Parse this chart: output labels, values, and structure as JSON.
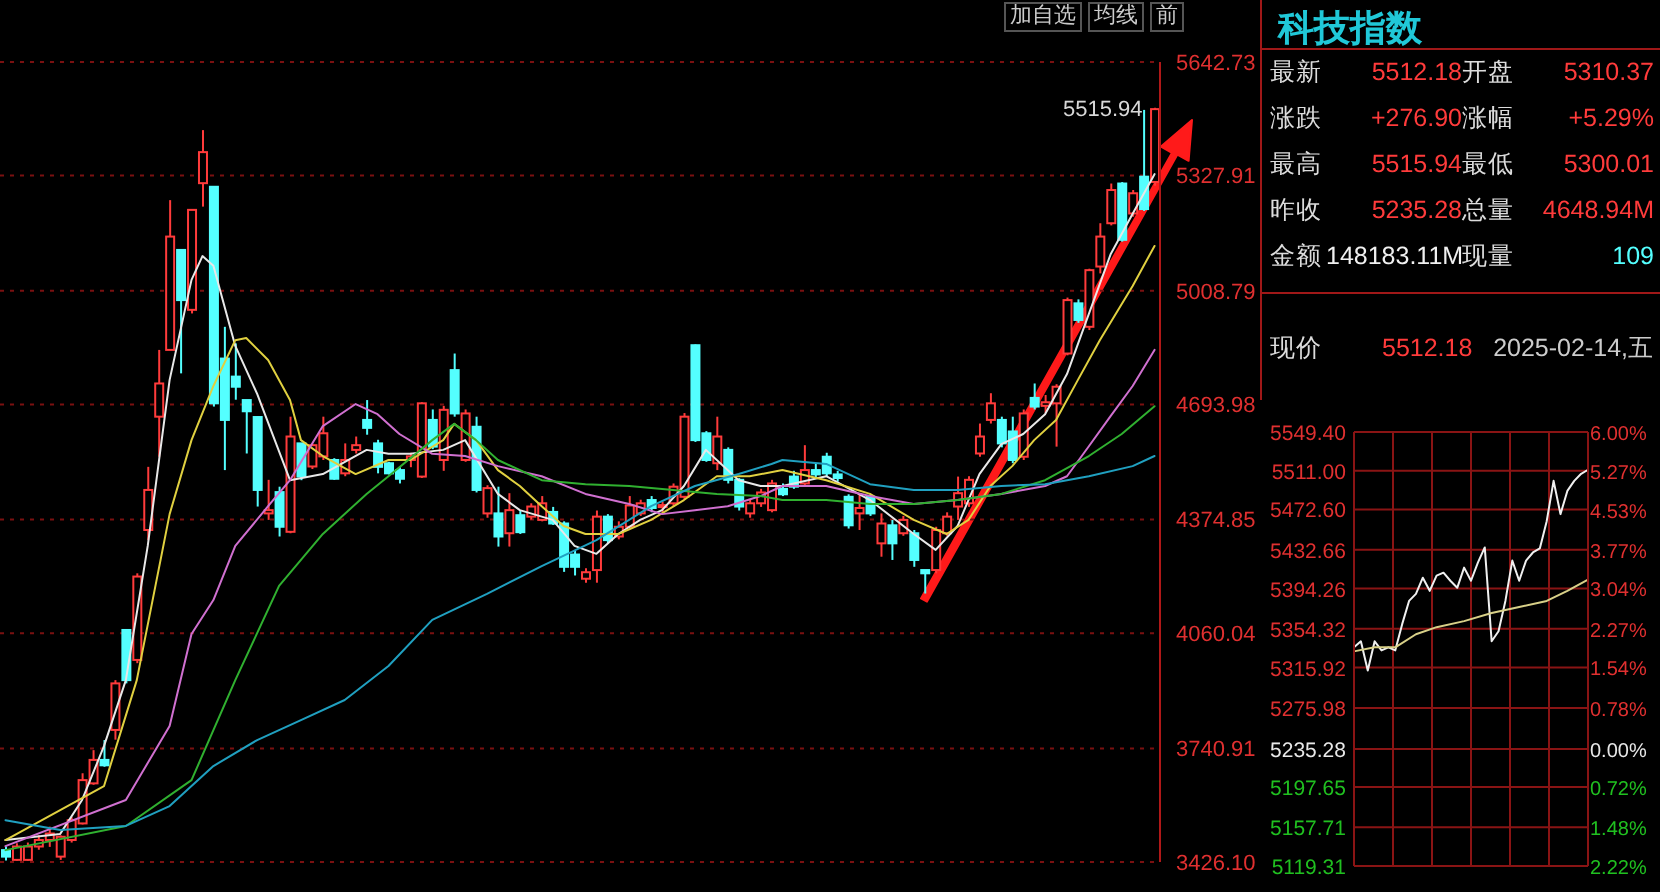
{
  "chart_data": [
    {
      "type": "candlestick",
      "categories": [
        null,
        null,
        null,
        null,
        null,
        null,
        null,
        null,
        null,
        null,
        null,
        null,
        null,
        null,
        null,
        null,
        null,
        null,
        null,
        null,
        null,
        null,
        null,
        null,
        null,
        null,
        null,
        null,
        null,
        null,
        null,
        null,
        null,
        null,
        null,
        null,
        null,
        null,
        null,
        null,
        null,
        null,
        null,
        null,
        null,
        null,
        null,
        null,
        null,
        null,
        null,
        null,
        null,
        null,
        null,
        null,
        null,
        null,
        null,
        null,
        null,
        null,
        null,
        null,
        null,
        null,
        null,
        null,
        null,
        null,
        null,
        null,
        null,
        null,
        null,
        null,
        null,
        null,
        null,
        null,
        null,
        null,
        null,
        null,
        null,
        null,
        null,
        null,
        null,
        null,
        null,
        null,
        null,
        null,
        null,
        null,
        null,
        null,
        null,
        null,
        null,
        null,
        null,
        null,
        null,
        null
      ],
      "ohlc": [
        [
          3459,
          3469,
          3430,
          3441
        ],
        [
          3432,
          3478,
          3430,
          3469
        ],
        [
          3432,
          3480,
          3430,
          3469
        ],
        [
          3469,
          3500,
          3460,
          3487
        ],
        [
          3487,
          3524,
          3468,
          3505
        ],
        [
          3441,
          3500,
          3432,
          3496
        ],
        [
          3487,
          3550,
          3480,
          3542
        ],
        [
          3533,
          3672,
          3530,
          3653
        ],
        [
          3644,
          3736,
          3640,
          3709
        ],
        [
          3709,
          3764,
          3690,
          3694
        ],
        [
          3792,
          3930,
          3765,
          3921
        ],
        [
          4069,
          4069,
          3921,
          3930
        ],
        [
          3986,
          4226,
          3977,
          4217
        ],
        [
          4346,
          4521,
          4318,
          4457
        ],
        [
          4660,
          4845,
          4549,
          4752
        ],
        [
          4845,
          5260,
          4845,
          5159
        ],
        [
          5122,
          5122,
          4780,
          4983
        ],
        [
          4956,
          5233,
          4946,
          5233
        ],
        [
          5307,
          5454,
          5242,
          5393
        ],
        [
          5297,
          5297,
          4688,
          4697
        ],
        [
          4821,
          4909,
          4512,
          4651
        ],
        [
          4771,
          4863,
          4707,
          4743
        ],
        [
          4706,
          4706,
          4558,
          4675
        ],
        [
          4659,
          4660,
          4411,
          4457
        ],
        [
          4392,
          4485,
          4374,
          4401
        ],
        [
          4451,
          4466,
          4328,
          4355
        ],
        [
          4341,
          4660,
          4337,
          4605
        ],
        [
          4586,
          4586,
          4484,
          4494
        ],
        [
          4522,
          4585,
          4515,
          4581
        ],
        [
          4550,
          4660,
          4540,
          4614
        ],
        [
          4540,
          4545,
          4485,
          4488
        ],
        [
          4503,
          4586,
          4495,
          4540
        ],
        [
          4568,
          4605,
          4558,
          4581
        ],
        [
          4651,
          4706,
          4610,
          4629
        ],
        [
          4586,
          4596,
          4503,
          4521
        ],
        [
          4531,
          4535,
          4500,
          4503
        ],
        [
          4512,
          4520,
          4475,
          4488
        ],
        [
          4540,
          4560,
          4520,
          4550
        ],
        [
          4494,
          4700,
          4490,
          4697
        ],
        [
          4651,
          4680,
          4570,
          4577
        ],
        [
          4540,
          4690,
          4510,
          4679
        ],
        [
          4789,
          4835,
          4660,
          4669
        ],
        [
          4540,
          4680,
          4535,
          4669
        ],
        [
          4632,
          4660,
          4450,
          4457
        ],
        [
          4392,
          4470,
          4380,
          4462
        ],
        [
          4392,
          4466,
          4300,
          4328
        ],
        [
          4337,
          4448,
          4300,
          4401
        ],
        [
          4387,
          4400,
          4335,
          4340
        ],
        [
          4383,
          4420,
          4375,
          4411
        ],
        [
          4374,
          4440,
          4370,
          4420
        ],
        [
          4396,
          4410,
          4360,
          4364
        ],
        [
          4364,
          4370,
          4230,
          4244
        ],
        [
          4278,
          4290,
          4220,
          4244
        ],
        [
          4211,
          4240,
          4200,
          4229
        ],
        [
          4235,
          4400,
          4200,
          4383
        ],
        [
          4383,
          4390,
          4310,
          4318
        ],
        [
          4328,
          4370,
          4320,
          4355
        ],
        [
          4355,
          4440,
          4350,
          4414
        ],
        [
          4392,
          4430,
          4385,
          4420
        ],
        [
          4429,
          4440,
          4395,
          4407
        ],
        [
          4410,
          4425,
          4395,
          4415
        ],
        [
          4420,
          4475,
          4410,
          4466
        ],
        [
          4438,
          4670,
          4430,
          4660
        ],
        [
          4858,
          4860,
          4590,
          4595
        ],
        [
          4614,
          4620,
          4535,
          4540
        ],
        [
          4531,
          4660,
          4512,
          4605
        ],
        [
          4568,
          4575,
          4475,
          4485
        ],
        [
          4485,
          4490,
          4400,
          4411
        ],
        [
          4392,
          4430,
          4380,
          4420
        ],
        [
          4420,
          4460,
          4410,
          4450
        ],
        [
          4401,
          4485,
          4395,
          4475
        ],
        [
          4460,
          4475,
          4440,
          4445
        ],
        [
          4494,
          4510,
          4460,
          4466
        ],
        [
          4475,
          4581,
          4470,
          4512
        ],
        [
          4512,
          4530,
          4490,
          4500
        ],
        [
          4549,
          4560,
          4495,
          4503
        ],
        [
          4500,
          4510,
          4480,
          4490
        ],
        [
          4438,
          4445,
          4350,
          4359
        ],
        [
          4392,
          4448,
          4346,
          4407
        ],
        [
          4438,
          4445,
          4385,
          4392
        ],
        [
          4309,
          4392,
          4272,
          4364
        ],
        [
          4359,
          4374,
          4263,
          4309
        ],
        [
          4337,
          4385,
          4330,
          4374
        ],
        [
          4337,
          4346,
          4244,
          4263
        ],
        [
          4235,
          4235,
          4170,
          4226
        ],
        [
          4235,
          4355,
          4226,
          4346
        ],
        [
          4337,
          4395,
          4330,
          4383
        ],
        [
          4411,
          4494,
          4374,
          4448
        ],
        [
          4420,
          4495,
          4410,
          4485
        ],
        [
          4558,
          4641,
          4549,
          4605
        ],
        [
          4651,
          4725,
          4641,
          4697
        ],
        [
          4651,
          4660,
          4575,
          4586
        ],
        [
          4619,
          4660,
          4531,
          4540
        ],
        [
          4549,
          4680,
          4540,
          4669
        ],
        [
          4712,
          4752,
          4680,
          4688
        ],
        [
          4690,
          4720,
          4670,
          4700
        ],
        [
          4697,
          4750,
          4577,
          4743
        ],
        [
          4835,
          4990,
          4830,
          4983
        ],
        [
          4974,
          4985,
          4920,
          4928
        ],
        [
          4909,
          5070,
          4900,
          5066
        ],
        [
          5076,
          5196,
          5057,
          5159
        ],
        [
          5196,
          5306,
          5190,
          5288
        ],
        [
          5306,
          5310,
          5145,
          5150
        ],
        [
          5223,
          5288,
          5214,
          5279
        ],
        [
          5325,
          5510,
          5230,
          5235.28
        ],
        [
          5310.37,
          5515.94,
          5300.01,
          5512.18
        ]
      ],
      "series": [
        {
          "type": "line",
          "color": "#e8e8e8",
          "values": [
            3487,
            null,
            null,
            null,
            null,
            3504,
            null,
            3598,
            null,
            3747,
            null,
            3930,
            null,
            4302,
            null,
            4762,
            null,
            5039,
            5105,
            5078,
            null,
            4856,
            null,
            4723,
            null,
            null,
            4484,
            null,
            null,
            4501,
            null,
            null,
            null,
            4568,
            null,
            4557,
            null,
            4557,
            null,
            null,
            4568,
            null,
            4595,
            null,
            null,
            4446,
            null,
            4401,
            null,
            null,
            4374,
            null,
            4302,
            null,
            4280,
            null,
            4335,
            null,
            4374,
            null,
            4401,
            null,
            4468,
            null,
            4568,
            null,
            null,
            4484,
            null,
            4468,
            null,
            4468,
            null,
            null,
            null,
            4495,
            null,
            null,
            null,
            4429,
            null,
            null,
            null,
            4335,
            null,
            4291,
            null,
            4357,
            null,
            4501,
            null,
            4584,
            null,
            4612,
            null,
            4667,
            null,
            4778,
            null,
            4945,
            null,
            5111,
            null,
            5222,
            null,
            5332
          ]
        },
        {
          "type": "line",
          "color": "#e0d040",
          "values": [
            3487,
            null,
            null,
            null,
            null,
            null,
            null,
            null,
            null,
            3636,
            null,
            null,
            3930,
            null,
            null,
            4390,
            null,
            4595,
            null,
            4745,
            null,
            4872,
            4878,
            null,
            4817,
            null,
            4706,
            4595,
            null,
            4551,
            null,
            null,
            4501,
            null,
            null,
            4540,
            null,
            4540,
            null,
            null,
            4595,
            4640,
            null,
            4595,
            null,
            4512,
            null,
            4468,
            null,
            4412,
            null,
            4357,
            null,
            4335,
            null,
            null,
            4335,
            null,
            null,
            4374,
            null,
            null,
            4429,
            null,
            null,
            4495,
            null,
            null,
            4495,
            null,
            null,
            4512,
            null,
            null,
            null,
            4484,
            null,
            null,
            null,
            4446,
            null,
            null,
            null,
            4374,
            null,
            null,
            4335,
            null,
            4374,
            null,
            4468,
            null,
            4523,
            null,
            4595,
            null,
            4651,
            null,
            4762,
            null,
            4872,
            null,
            null,
            5022,
            null,
            5133
          ]
        },
        {
          "type": "line",
          "color": "#d070d0",
          "values": [
            3470,
            null,
            null,
            null,
            null,
            null,
            null,
            null,
            null,
            null,
            null,
            3598,
            null,
            null,
            null,
            3803,
            null,
            4058,
            null,
            4152,
            null,
            4302,
            null,
            null,
            4412,
            null,
            4484,
            null,
            null,
            4634,
            null,
            null,
            4695,
            null,
            4667,
            null,
            4612,
            null,
            null,
            4557,
            null,
            null,
            4551,
            null,
            null,
            4523,
            null,
            null,
            null,
            4495,
            null,
            null,
            null,
            4446,
            null,
            null,
            null,
            4418,
            null,
            null,
            4390,
            null,
            null,
            4401,
            null,
            null,
            4412,
            null,
            null,
            4440,
            null,
            4468,
            null,
            null,
            null,
            4468,
            null,
            null,
            null,
            4440,
            null,
            null,
            null,
            4418,
            null,
            null,
            null,
            4429,
            null,
            null,
            null,
            4446,
            null,
            null,
            null,
            4468,
            null,
            4495,
            null,
            4578,
            null,
            4662,
            null,
            4745,
            null,
            4845
          ]
        },
        {
          "type": "line",
          "color": "#30b030",
          "values": [
            3459,
            null,
            null,
            null,
            null,
            null,
            null,
            null,
            null,
            null,
            null,
            3526,
            null,
            null,
            null,
            null,
            null,
            3653,
            null,
            null,
            null,
            3930,
            null,
            null,
            null,
            4191,
            null,
            null,
            null,
            4335,
            null,
            null,
            null,
            4446,
            null,
            4495,
            null,
            null,
            null,
            4595,
            null,
            4640,
            null,
            4595,
            null,
            4540,
            null,
            null,
            null,
            4484,
            null,
            null,
            null,
            4473,
            null,
            null,
            null,
            4468,
            null,
            null,
            null,
            4457,
            null,
            null,
            null,
            4446,
            null,
            null,
            null,
            4440,
            null,
            4429,
            null,
            null,
            null,
            4429,
            null,
            null,
            null,
            4418,
            null,
            null,
            null,
            4418,
            null,
            null,
            null,
            4429,
            null,
            null,
            null,
            4446,
            null,
            null,
            null,
            4484,
            null,
            null,
            null,
            4551,
            null,
            null,
            4612,
            null,
            null,
            4689
          ]
        },
        {
          "type": "line",
          "color": "#20a0c0",
          "values": [
            3542,
            null,
            null,
            null,
            null,
            3515,
            null,
            null,
            null,
            null,
            null,
            3526,
            null,
            null,
            null,
            3581,
            null,
            null,
            null,
            3692,
            null,
            null,
            null,
            3764,
            null,
            null,
            null,
            3819,
            null,
            null,
            null,
            3875,
            null,
            null,
            null,
            3969,
            null,
            null,
            null,
            4097,
            null,
            null,
            null,
            null,
            4169,
            null,
            null,
            null,
            null,
            4246,
            null,
            null,
            null,
            null,
            4318,
            null,
            null,
            null,
            null,
            4412,
            null,
            null,
            null,
            4468,
            null,
            null,
            null,
            4501,
            null,
            null,
            4529,
            4540,
            null,
            null,
            null,
            4529,
            null,
            null,
            null,
            4473,
            null,
            null,
            null,
            4457,
            null,
            null,
            null,
            4457,
            null,
            null,
            null,
            4468,
            null,
            null,
            null,
            4473,
            null,
            null,
            null,
            4495,
            null,
            null,
            null,
            4523,
            null,
            4551
          ]
        }
      ],
      "ylim": [
        3426.1,
        5642.73
      ],
      "yticks": [
        5642.73,
        5327.91,
        5008.79,
        4693.98,
        4374.85,
        4060.04,
        3740.91,
        {
          "value": 3426.1,
          "label": "3426.10"
        }
      ],
      "grid": "y",
      "marker": "none",
      "tick_labels": "y",
      "annotations": [
        "5515.94",
        "加自选",
        "均线",
        "前"
      ]
    },
    {
      "type": "other",
      "title": "科技指数",
      "annotations": [
        "最新",
        "5512.18",
        "开盘",
        "5310.37",
        "涨跌",
        "+276.90",
        "涨幅",
        "+5.29%",
        "最高",
        "5515.94",
        "最低",
        "5300.01",
        "昨收",
        "5235.28",
        "总量",
        "4648.94M",
        "金额",
        "148183.11M",
        "现量",
        "109",
        "现价",
        "5512.18",
        "2025-02-14,五"
      ]
    },
    {
      "type": "line",
      "categories": [
        null,
        null,
        null,
        null,
        null,
        null,
        null,
        null,
        null,
        null,
        null,
        null,
        null,
        null,
        null,
        null,
        null,
        null,
        null,
        null,
        null,
        null,
        null,
        null,
        null,
        null,
        null,
        null,
        null,
        null,
        null,
        null,
        null,
        null,
        null
      ],
      "series": [
        {
          "color": "#f0f0f0",
          "values": [
            5336,
            5342,
            5313,
            5342,
            5333,
            5336,
            5333,
            5359,
            5382,
            5389,
            5405,
            5392,
            5407,
            5410,
            5402,
            5395,
            5415,
            5402,
            5420,
            5435,
            5342,
            5352,
            5382,
            5422,
            5402,
            5422,
            5430,
            5434,
            5461,
            5501,
            5468,
            5491,
            5501,
            5508,
            5512
          ]
        },
        {
          "color": "#d8d088",
          "values": [
            5332,
            null,
            null,
            5336,
            null,
            null,
            5336,
            null,
            null,
            5349,
            null,
            null,
            5356,
            null,
            null,
            null,
            5362,
            null,
            null,
            null,
            5370,
            null,
            null,
            null,
            5376,
            null,
            null,
            null,
            5382,
            null,
            null,
            5392,
            null,
            null,
            5403
          ]
        }
      ],
      "ylim": [
        5119.31,
        5549.4
      ],
      "yticks": [
        {
          "value": 5549.4,
          "label": "5549.40"
        },
        {
          "value": 5511,
          "label": "5511.00"
        },
        {
          "value": 5472.6,
          "label": "5472.60"
        },
        5432.66,
        5394.26,
        5354.32,
        5315.92,
        5275.98,
        5235.28,
        5197.65,
        5157.71,
        5119.31
      ],
      "y2lim": [
        -2.22,
        6
      ],
      "y2ticks": [
        {
          "value": 6,
          "label": "6.00%"
        },
        {
          "value": 5.27,
          "label": "5.27%"
        },
        {
          "value": 4.53,
          "label": "4.53%"
        },
        {
          "value": 3.77,
          "label": "3.77%"
        },
        {
          "value": 3.04,
          "label": "3.04%"
        },
        {
          "value": 2.27,
          "label": "2.27%"
        },
        {
          "value": 1.54,
          "label": "1.54%"
        },
        {
          "value": 0.78,
          "label": "0.78%"
        },
        {
          "value": 0,
          "label": "0.00%"
        },
        {
          "value": -0.72,
          "label": "0.72%"
        },
        {
          "value": -1.48,
          "label": "1.48%"
        },
        {
          "value": -2.22,
          "label": "2.22%"
        }
      ],
      "grid": true,
      "marker": "none",
      "tick_labels": "y"
    }
  ]
}
